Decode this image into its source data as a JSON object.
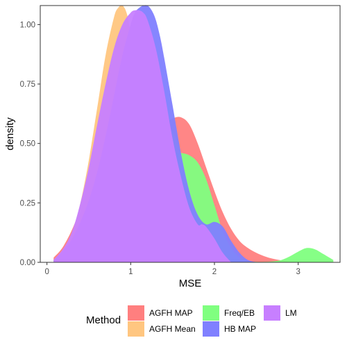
{
  "chart_data": {
    "type": "area",
    "xlabel": "MSE",
    "ylabel": "density",
    "xlim": [
      -0.08,
      3.5
    ],
    "ylim": [
      0,
      1.08
    ],
    "x_ticks": [
      "0",
      "1",
      "2",
      "3"
    ],
    "y_ticks": [
      "0.00",
      "0.25",
      "0.50",
      "0.75",
      "1.00"
    ],
    "legend_title": "Method",
    "legend_position": "bottom",
    "grid": false,
    "series": [
      {
        "name": "AGFH MAP",
        "color": "#ff7f7f",
        "x": [
          0.08,
          0.2,
          0.35,
          0.5,
          0.65,
          0.8,
          0.9,
          1.0,
          1.1,
          1.2,
          1.3,
          1.4,
          1.5,
          1.6,
          1.7,
          1.8,
          1.9,
          2.0,
          2.1,
          2.2,
          2.3,
          2.4,
          2.5,
          2.6,
          2.7,
          2.8,
          2.92
        ],
        "y": [
          0.02,
          0.07,
          0.18,
          0.35,
          0.52,
          0.63,
          0.66,
          0.64,
          0.6,
          0.57,
          0.56,
          0.58,
          0.605,
          0.61,
          0.58,
          0.5,
          0.4,
          0.3,
          0.21,
          0.14,
          0.09,
          0.06,
          0.04,
          0.025,
          0.015,
          0.008,
          0.0
        ]
      },
      {
        "name": "AGFH Mean",
        "color": "#ffc680",
        "x": [
          0.08,
          0.2,
          0.3,
          0.4,
          0.5,
          0.6,
          0.7,
          0.8,
          0.85,
          0.9,
          0.95,
          1.0,
          1.1,
          1.2,
          1.3,
          1.4,
          1.5,
          1.6,
          1.7,
          1.8,
          1.9,
          2.0
        ],
        "y": [
          0.01,
          0.05,
          0.12,
          0.25,
          0.43,
          0.65,
          0.87,
          1.03,
          1.07,
          1.08,
          1.05,
          0.97,
          0.78,
          0.62,
          0.55,
          0.56,
          0.55,
          0.46,
          0.32,
          0.17,
          0.06,
          0.0
        ]
      },
      {
        "name": "Freq/EB",
        "color": "#80ff80",
        "x": [
          0.08,
          0.3,
          0.5,
          0.7,
          0.9,
          1.0,
          1.1,
          1.2,
          1.3,
          1.4,
          1.5,
          1.6,
          1.7,
          1.8,
          1.9,
          2.0,
          2.1,
          2.2,
          2.3,
          2.4,
          2.5,
          2.6,
          2.7,
          2.8,
          2.9,
          3.0,
          3.1,
          3.2,
          3.3,
          3.42
        ],
        "y": [
          0.01,
          0.08,
          0.25,
          0.46,
          0.6,
          0.65,
          0.64,
          0.6,
          0.55,
          0.49,
          0.46,
          0.46,
          0.45,
          0.42,
          0.35,
          0.24,
          0.13,
          0.06,
          0.02,
          0.005,
          0.002,
          0.002,
          0.004,
          0.01,
          0.025,
          0.045,
          0.06,
          0.055,
          0.035,
          0.01
        ]
      },
      {
        "name": "HB MAP",
        "color": "#8080ff",
        "x": [
          0.08,
          0.2,
          0.3,
          0.4,
          0.5,
          0.6,
          0.7,
          0.8,
          0.9,
          1.0,
          1.05,
          1.1,
          1.15,
          1.2,
          1.25,
          1.3,
          1.35,
          1.4,
          1.5,
          1.6,
          1.7,
          1.8,
          1.9,
          2.0,
          2.1,
          2.2,
          2.3,
          2.4,
          2.52
        ],
        "y": [
          0.01,
          0.05,
          0.1,
          0.17,
          0.26,
          0.38,
          0.53,
          0.7,
          0.87,
          1.0,
          1.05,
          1.07,
          1.08,
          1.08,
          1.06,
          1.02,
          0.95,
          0.86,
          0.66,
          0.46,
          0.3,
          0.2,
          0.16,
          0.17,
          0.15,
          0.09,
          0.04,
          0.01,
          0.0
        ]
      },
      {
        "name": "LM",
        "color": "#c77fff",
        "x": [
          0.08,
          0.2,
          0.3,
          0.4,
          0.5,
          0.6,
          0.7,
          0.8,
          0.9,
          1.0,
          1.05,
          1.1,
          1.15,
          1.2,
          1.3,
          1.4,
          1.5,
          1.6,
          1.7,
          1.8,
          1.85,
          1.9,
          2.0,
          2.1,
          2.2
        ],
        "y": [
          0.01,
          0.06,
          0.13,
          0.25,
          0.4,
          0.58,
          0.75,
          0.9,
          1.0,
          1.05,
          1.06,
          1.06,
          1.05,
          1.02,
          0.9,
          0.72,
          0.52,
          0.36,
          0.23,
          0.16,
          0.16,
          0.15,
          0.1,
          0.04,
          0.0
        ]
      }
    ]
  }
}
